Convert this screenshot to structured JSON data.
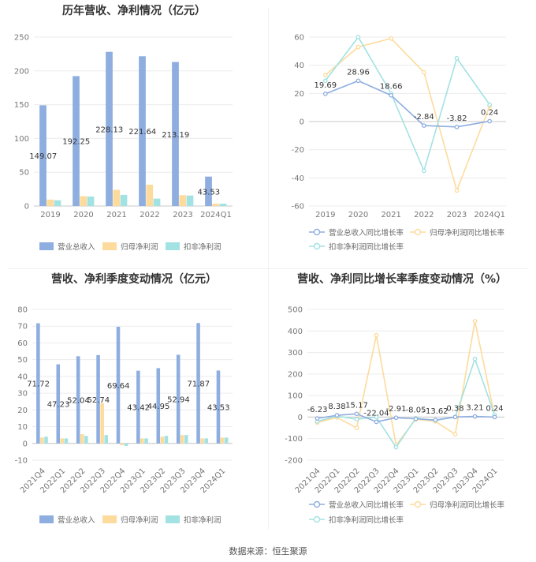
{
  "source": "数据来源：恒生聚源",
  "chart_data": [
    {
      "type": "bar",
      "title": "历年营收、净利情况（亿元）",
      "categories": [
        "2019",
        "2020",
        "2021",
        "2022",
        "2023",
        "2024Q1"
      ],
      "ylim": [
        0,
        250
      ],
      "yticks": [
        0,
        50,
        100,
        150,
        200,
        250
      ],
      "series": [
        {
          "name": "营业总收入",
          "color": "#8eaee0",
          "values": [
            149.07,
            192.25,
            228.13,
            221.64,
            213.19,
            43.53
          ],
          "labels": [
            "149.07",
            "192.25",
            "228.13",
            "221.64",
            "213.19",
            "43.53"
          ]
        },
        {
          "name": "归母净利润",
          "color": "#fddb9c",
          "values": [
            9.5,
            14.5,
            24,
            31.5,
            16,
            3.5
          ]
        },
        {
          "name": "扣非净利润",
          "color": "#a3e2e2",
          "values": [
            8.5,
            14,
            16.5,
            11,
            15.5,
            3.5
          ]
        }
      ]
    },
    {
      "type": "line",
      "title": "历年营收、净利同比增长率情况（%）",
      "categories": [
        "2019",
        "2020",
        "2021",
        "2022",
        "2023",
        "2024Q1"
      ],
      "ylim": [
        -60,
        60
      ],
      "yticks": [
        -60,
        -40,
        -20,
        0,
        20,
        40,
        60
      ],
      "series": [
        {
          "name": "营业总收入同比增长率",
          "color": "#8eaee0",
          "values": [
            19.69,
            28.96,
            18.66,
            -2.84,
            -3.82,
            0.24
          ],
          "labels": [
            "19.69",
            "28.96",
            "18.66",
            "-2.84",
            "-3.82",
            "0.24"
          ]
        },
        {
          "name": "归母净利润同比增长率",
          "color": "#fddb9c",
          "values": [
            33,
            53,
            59,
            35,
            -49,
            11
          ]
        },
        {
          "name": "扣非净利润同比增长率",
          "color": "#a3e2e2",
          "values": [
            29,
            60,
            20,
            -35,
            45,
            12
          ]
        }
      ]
    },
    {
      "type": "bar",
      "title": "营收、净利季度变动情况（亿元）",
      "categories": [
        "2021Q4",
        "2022Q1",
        "2022Q2",
        "2022Q3",
        "2022Q4",
        "2023Q1",
        "2023Q2",
        "2023Q3",
        "2023Q4",
        "2024Q1"
      ],
      "ylim": [
        -10,
        80
      ],
      "yticks": [
        -10,
        0,
        10,
        20,
        30,
        40,
        50,
        60,
        70,
        80
      ],
      "series": [
        {
          "name": "营业总收入",
          "color": "#8eaee0",
          "values": [
            71.72,
            47.23,
            52.04,
            52.74,
            69.64,
            43.42,
            44.95,
            52.94,
            71.87,
            43.53
          ],
          "labels": [
            "71.72",
            "47.23",
            "52.04",
            "52.74",
            "69.64",
            "43.42",
            "44.95",
            "52.94",
            "71.87",
            "43.53"
          ]
        },
        {
          "name": "归母净利润",
          "color": "#fddb9c",
          "values": [
            3.5,
            3,
            5.5,
            24,
            -1,
            3,
            4,
            5,
            3,
            3.5
          ]
        },
        {
          "name": "扣非净利润",
          "color": "#a3e2e2",
          "values": [
            4,
            3,
            4.5,
            5,
            -1.5,
            3,
            4.5,
            5,
            3,
            3.5
          ]
        }
      ]
    },
    {
      "type": "line",
      "title": "营收、净利同比增长率季度变动情况（%）",
      "categories": [
        "2021Q4",
        "2022Q1",
        "2022Q2",
        "2022Q3",
        "2022Q4",
        "2023Q1",
        "2023Q2",
        "2023Q3",
        "2023Q4",
        "2024Q1"
      ],
      "ylim": [
        -200,
        500
      ],
      "yticks": [
        -200,
        -100,
        0,
        100,
        200,
        300,
        400,
        500
      ],
      "series": [
        {
          "name": "营业总收入同比增长率",
          "color": "#8eaee0",
          "values": [
            -6.23,
            8.38,
            15.17,
            -22.04,
            -2.91,
            -8.05,
            -13.62,
            0.38,
            3.21,
            0.24
          ],
          "labels": [
            "-6.23",
            "8.38",
            "15.17",
            "-22.04",
            "-2.91",
            "-8.05",
            "-13.62",
            "0.38",
            "3.21",
            "0.24"
          ]
        },
        {
          "name": "归母净利润同比增长率",
          "color": "#fddb9c",
          "values": [
            -25,
            -2,
            -50,
            380,
            -130,
            -10,
            -20,
            -80,
            445,
            5
          ]
        },
        {
          "name": "扣非净利润同比增长率",
          "color": "#a3e2e2",
          "values": [
            -20,
            5,
            -10,
            0,
            -140,
            -5,
            -15,
            0,
            270,
            10
          ]
        }
      ]
    }
  ]
}
